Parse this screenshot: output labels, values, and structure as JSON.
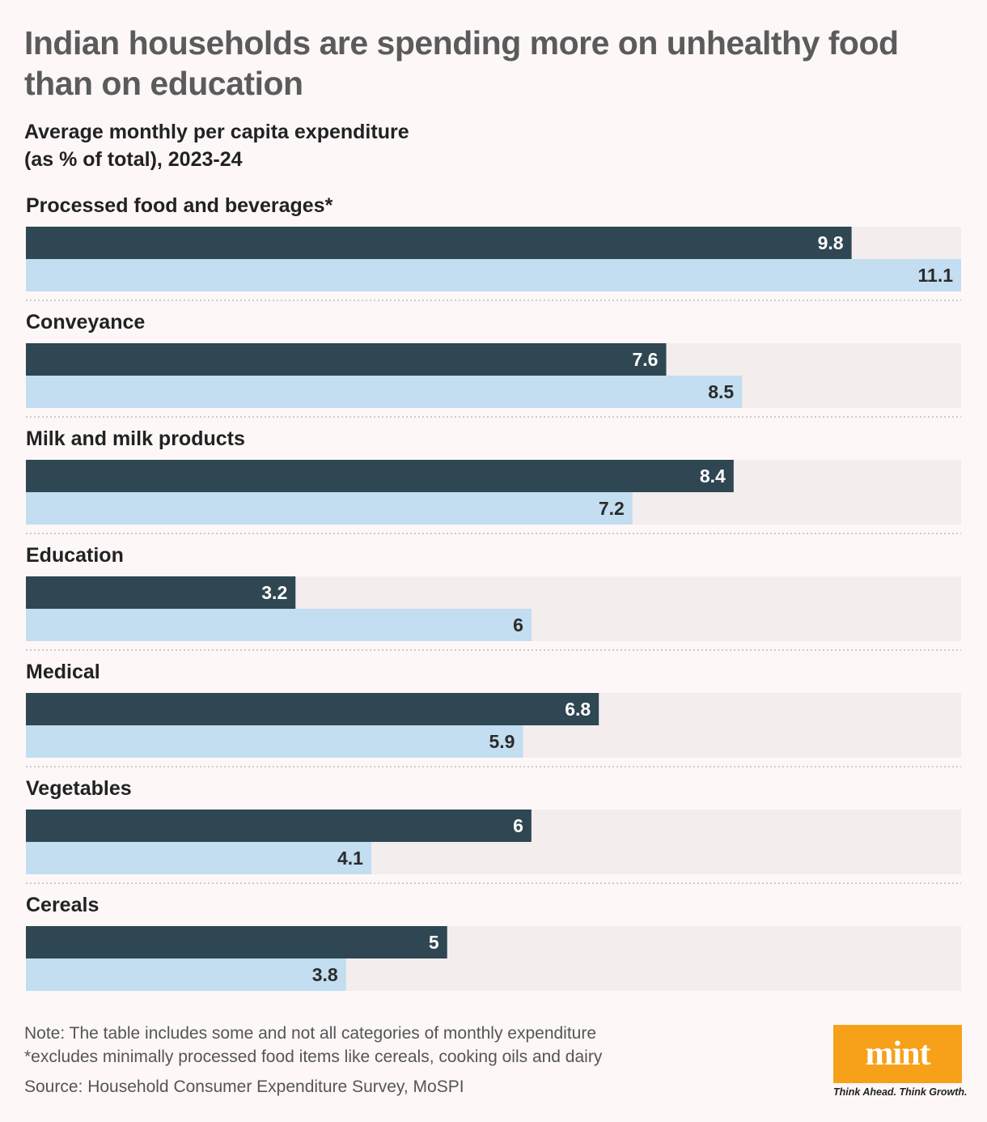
{
  "title": "Indian households are spending more on unhealthy food than on education",
  "subtitle_line1": "Average monthly per capita expenditure",
  "subtitle_line2": "(as % of total), 2023-24",
  "chart_data": {
    "type": "bar",
    "orientation": "horizontal",
    "categories": [
      "Processed food and beverages*",
      "Conveyance",
      "Milk and milk products",
      "Education",
      "Medical",
      "Vegetables",
      "Cereals"
    ],
    "series": [
      {
        "values": [
          9.8,
          7.6,
          8.4,
          3.2,
          6.8,
          6,
          5
        ],
        "color": "#2f4653"
      },
      {
        "values": [
          11.1,
          8.5,
          7.2,
          6,
          5.9,
          4.1,
          3.8
        ],
        "color": "#c2def0"
      }
    ],
    "value_labels": [
      [
        "9.8",
        "11.1"
      ],
      [
        "7.6",
        "8.5"
      ],
      [
        "8.4",
        "7.2"
      ],
      [
        "3.2",
        "6"
      ],
      [
        "6.8",
        "5.9"
      ],
      [
        "6",
        "4.1"
      ],
      [
        "5",
        "3.8"
      ]
    ],
    "xlim": [
      0,
      11.1
    ],
    "track_color": "#f3eded",
    "grid": false
  },
  "notes": {
    "note": "Note: The table includes some and not all categories of monthly expenditure",
    "footnote": "*excludes minimally processed food items like cereals, cooking oils and dairy",
    "source": "Source: Household Consumer Expenditure Survey, MoSPI"
  },
  "logo": {
    "text": "mint",
    "tagline": "Think Ahead. Think Growth.",
    "color": "#f7a11a"
  }
}
